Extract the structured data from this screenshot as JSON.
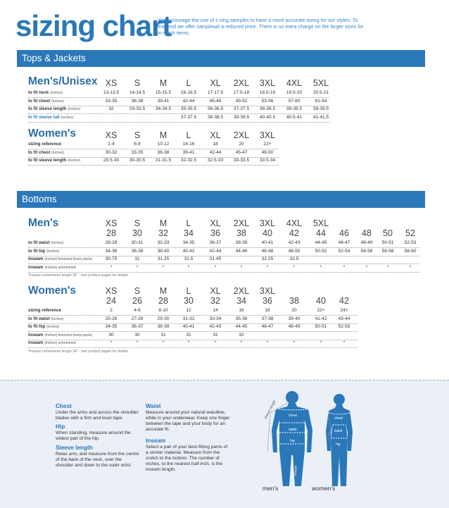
{
  "header": {
    "title": "sizing chart",
    "intro": "We encourage the use of s zing samples to have a more accurate sizing for our styles. To that end we offer samplesat a reduced price. There is no extra charge on the larger sizes for in-stock items."
  },
  "tops": {
    "band": "Tops & Jackets",
    "men": {
      "heading": "Men's/Unisex",
      "sizes": [
        "XS",
        "S",
        "M",
        "L",
        "XL",
        "2XL",
        "3XL",
        "4XL",
        "5XL"
      ],
      "rows": [
        {
          "label": "to fit neck",
          "unit": "(inches)",
          "blue": false,
          "values": [
            "13-13.5",
            "14-14.5",
            "15-15.5",
            "16-16.5",
            "17-17.5",
            "17.5-18",
            "18.5-19",
            "19.5-20",
            "20.5-21"
          ]
        },
        {
          "label": "to fit chest",
          "unit": "(inches)",
          "blue": false,
          "values": [
            "33-35",
            "36-38",
            "39-41",
            "42-44",
            "45-48",
            "49-52",
            "53-56",
            "57-60",
            "61-64"
          ]
        },
        {
          "label": "to fit sleeve length",
          "unit": "(inches)",
          "blue": false,
          "values": [
            "32",
            "33-33.5",
            "34-34.5",
            "35-35.5",
            "36-36.5",
            "37-37.5",
            "38-38.5",
            "39-39.5",
            "39-39.5"
          ]
        },
        {
          "label": "to fit sleeve tall",
          "unit": "(inches)",
          "blue": true,
          "values": [
            "",
            "",
            "",
            "37-37.5",
            "38-38.5",
            "39-39.5",
            "40-40.5",
            "40.5-41",
            "41-41.5"
          ]
        }
      ]
    },
    "women": {
      "heading": "Women's",
      "sizes": [
        "XS",
        "S",
        "M",
        "L",
        "XL",
        "2XL",
        "3XL"
      ],
      "rows": [
        {
          "label": "sizing reference",
          "unit": "",
          "blue": false,
          "values": [
            "2-4",
            "6-8",
            "10-12",
            "14-16",
            "18",
            "20",
            "22+"
          ]
        },
        {
          "label": "to fit chest",
          "unit": "(inches)",
          "blue": false,
          "values": [
            "30-32",
            "33-35",
            "36-38",
            "39-41",
            "42-44",
            "45-47",
            "48-50"
          ]
        },
        {
          "label": "to fit sleeve length",
          "unit": "(inches)",
          "blue": false,
          "values": [
            "29.5-30",
            "30-30.5",
            "31-31.5",
            "32-32.5",
            "32.5-33",
            "33-33.5",
            "33.5-34"
          ]
        }
      ]
    }
  },
  "bottoms": {
    "band": "Bottoms",
    "men": {
      "heading": "Men's",
      "sizes": [
        "XS",
        "S",
        "M",
        "L",
        "XL",
        "2XL",
        "3XL",
        "4XL",
        "5XL"
      ],
      "waists": [
        "28",
        "30",
        "32",
        "34",
        "36",
        "38",
        "40",
        "42",
        "44",
        "46",
        "48",
        "50",
        "52"
      ],
      "rows": [
        {
          "label": "to fit waist",
          "unit": "(inches)",
          "values": [
            "28-29",
            "30-31",
            "32-33",
            "34-35",
            "36-37",
            "38-39",
            "40-41",
            "42-43",
            "44-45",
            "46-47",
            "48-49",
            "50-51",
            "52-53"
          ]
        },
        {
          "label": "to fit hip",
          "unit": "(inches)",
          "values": [
            "34-36",
            "36-38",
            "38-40",
            "40-42",
            "42-44",
            "44-46",
            "46-48",
            "48-50",
            "50-52",
            "52-54",
            "54-56",
            "56-58",
            "58-60"
          ]
        },
        {
          "label": "inseam",
          "unit": "(inches) hemmed (track pants)",
          "values": [
            "30.75",
            "31",
            "31.25",
            "31.5",
            "31.45",
            "",
            "32.25",
            "32.5",
            "",
            "",
            "",
            "",
            ""
          ]
        },
        {
          "label": "inseam",
          "unit": "(inches) unhemmed",
          "values": [
            "*",
            "*",
            "*",
            "*",
            "*",
            "*",
            "*",
            "*",
            "*",
            "*",
            "*",
            "*",
            "*"
          ]
        }
      ],
      "note": "*inseam unhemmed length 36\" - see product pages for details"
    },
    "women": {
      "heading": "Women's",
      "sizes": [
        "XS",
        "S",
        "M",
        "L",
        "XL",
        "2XL",
        "3XL"
      ],
      "waists": [
        "24",
        "26",
        "28",
        "30",
        "32",
        "34",
        "36",
        "38",
        "40",
        "42"
      ],
      "rows": [
        {
          "label": "sizing reference",
          "unit": "",
          "values": [
            "2",
            "4-6",
            "8-10",
            "12",
            "14",
            "16",
            "18",
            "20",
            "22+",
            "24+"
          ]
        },
        {
          "label": "to fit waist",
          "unit": "(inches)",
          "values": [
            "25-26",
            "27-28",
            "29-30",
            "31-32",
            "33-34",
            "35-36",
            "37-38",
            "39-40",
            "41-42",
            "43-44"
          ]
        },
        {
          "label": "to fit hip",
          "unit": "(inches)",
          "values": [
            "34-35",
            "36-37",
            "38-39",
            "40-41",
            "42-43",
            "44-45",
            "46-47",
            "48-49",
            "50-51",
            "52-53"
          ]
        },
        {
          "label": "inseam",
          "unit": "(inches) hemmed (track pants)",
          "values": [
            "30",
            "30",
            "31",
            "31",
            "31",
            "32",
            "",
            "",
            "",
            ""
          ]
        },
        {
          "label": "inseam",
          "unit": "(inches) unhemmed",
          "values": [
            "*",
            "*",
            "*",
            "*",
            "*",
            "*",
            "*",
            "*",
            "*",
            "*"
          ]
        }
      ],
      "note": "*inseam unhemmed length 34\" - see product pages for details"
    }
  },
  "measure": {
    "chest_h": "Chest",
    "chest_t": "Under the arms and across the shoulder blades with a firm and level tape.",
    "hip_h": "Hip",
    "hip_t": "When standing, measure around the widest part of the hip.",
    "sleeve_h": "Sleeve length",
    "sleeve_t": "Relax arm, and measure from the centre of the back of the neck, over the shoulder and down to the outer wrist.",
    "waist_h": "Waist",
    "waist_t": "Measure around your natural waistline, while in your underwear. Keep one finger between the tape and your body for an accurate fit.",
    "inseam_h": "Inseam",
    "inseam_t": "Select a pair of your best-fitting pants of a similar material. Measure from the crotch to the bottom. The number of inches, to the nearest half-inch, is the inseam length.",
    "fig_labels": {
      "sleeve": "sleeve length",
      "chest": "chest",
      "waist": "waist",
      "hip": "hip",
      "inseam": "inseam"
    },
    "mens_caption": "men's",
    "womens_caption": "women's"
  },
  "colors": {
    "accent": "#2a78b9",
    "panel": "#eaf0f6",
    "figure": "#2a78b9"
  }
}
